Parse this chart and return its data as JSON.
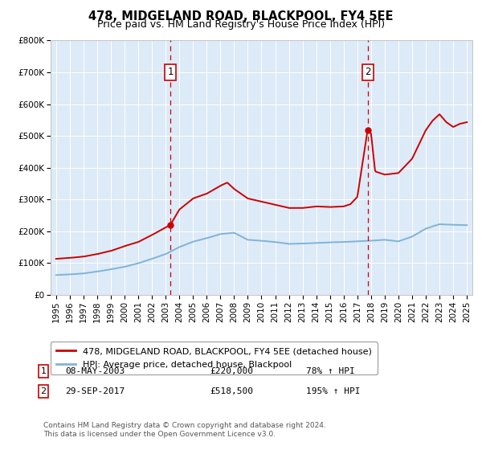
{
  "title": "478, MIDGELAND ROAD, BLACKPOOL, FY4 5EE",
  "subtitle": "Price paid vs. HM Land Registry's House Price Index (HPI)",
  "property_label": "478, MIDGELAND ROAD, BLACKPOOL, FY4 5EE (detached house)",
  "hpi_label": "HPI: Average price, detached house, Blackpool",
  "property_color": "#cc0000",
  "hpi_color": "#7fb3d9",
  "background_color": "#ddeaf7",
  "grid_color": "#ffffff",
  "annotation1": {
    "label": "1",
    "date": "08-MAY-2003",
    "price": "£220,000",
    "pct": "78% ↑ HPI",
    "x_year": 2003.35,
    "y_val": 220000
  },
  "annotation2": {
    "label": "2",
    "date": "29-SEP-2017",
    "price": "£518,500",
    "pct": "195% ↑ HPI",
    "x_year": 2017.75,
    "y_val": 518500
  },
  "footer1": "Contains HM Land Registry data © Crown copyright and database right 2024.",
  "footer2": "This data is licensed under the Open Government Licence v3.0.",
  "ylim": [
    0,
    800000
  ],
  "yticks": [
    0,
    100000,
    200000,
    300000,
    400000,
    500000,
    600000,
    700000,
    800000
  ],
  "ytick_labels": [
    "£0",
    "£100K",
    "£200K",
    "£300K",
    "£400K",
    "£500K",
    "£600K",
    "£700K",
    "£800K"
  ],
  "xlim_start": 1994.6,
  "xlim_end": 2025.4,
  "xticks": [
    1995,
    1996,
    1997,
    1998,
    1999,
    2000,
    2001,
    2002,
    2003,
    2004,
    2005,
    2006,
    2007,
    2008,
    2009,
    2010,
    2011,
    2012,
    2013,
    2014,
    2015,
    2016,
    2017,
    2018,
    2019,
    2020,
    2021,
    2022,
    2023,
    2024,
    2025
  ],
  "hpi_key_years": [
    1995,
    1996,
    1997,
    1998,
    1999,
    2000,
    2001,
    2002,
    2003,
    2004,
    2005,
    2006,
    2007,
    2008,
    2009,
    2010,
    2011,
    2012,
    2013,
    2014,
    2015,
    2016,
    2017,
    2018,
    2019,
    2020,
    2021,
    2022,
    2023,
    2024,
    2025
  ],
  "hpi_key_values": [
    62000,
    64000,
    67000,
    73000,
    80000,
    88000,
    99000,
    113000,
    128000,
    150000,
    167000,
    178000,
    191000,
    195000,
    173000,
    170000,
    166000,
    160000,
    161000,
    163000,
    165000,
    166000,
    168000,
    170000,
    173000,
    168000,
    183000,
    208000,
    222000,
    220000,
    219000
  ],
  "prop_key_years": [
    1995,
    1996,
    1997,
    1998,
    1999,
    2000,
    2001,
    2002,
    2003.35,
    2004,
    2005,
    2006,
    2007,
    2007.5,
    2008,
    2009,
    2010,
    2011,
    2012,
    2013,
    2014,
    2015,
    2016,
    2016.5,
    2017,
    2017.75,
    2018,
    2018.3,
    2019,
    2020,
    2021,
    2021.5,
    2022,
    2022.5,
    2023,
    2023.5,
    2024,
    2024.5,
    2025
  ],
  "prop_key_values": [
    113000,
    116000,
    120000,
    128000,
    138000,
    153000,
    166000,
    188000,
    220000,
    268000,
    303000,
    318000,
    343000,
    353000,
    333000,
    303000,
    293000,
    283000,
    273000,
    273000,
    278000,
    276000,
    278000,
    285000,
    308000,
    518500,
    508000,
    388000,
    378000,
    383000,
    428000,
    473000,
    518000,
    548000,
    568000,
    543000,
    528000,
    538000,
    543000
  ]
}
